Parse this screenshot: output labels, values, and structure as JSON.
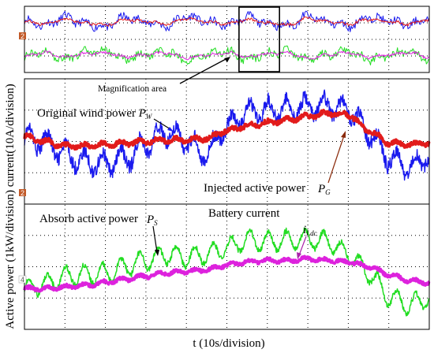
{
  "figure": {
    "ylabel": "Active power (1kW/division) current(10A/division)",
    "xlabel": "t (10s/division)",
    "annotations": {
      "magnification": "Magnification area",
      "wind": "Original wind power",
      "injected": "Injected active power",
      "absorb": "Absorb active power",
      "battery": "Battery  current"
    },
    "symbols": {
      "pw_main": "P",
      "pw_sub": "W",
      "pg_main": "P",
      "pg_sub": "G",
      "ps_main": "P",
      "ps_sub": "S",
      "il_main": "i",
      "il_sub": "Ldc"
    },
    "channel_markers": [
      "2",
      "2",
      "4"
    ]
  },
  "colors": {
    "wind": "#1a1aee",
    "injected": "#e21b1b",
    "absorb": "#22dd22",
    "battery": "#dd22dd",
    "grid": "#000000",
    "marker_bg": "#c25a28"
  },
  "chart_data": [
    {
      "type": "line",
      "panel": "overview",
      "xlim": [
        0,
        10
      ],
      "grid": true,
      "series": [
        {
          "key": "wind",
          "values": [
            2.35,
            2.15,
            2.5,
            2.2,
            2.05,
            2.5,
            2.3,
            2.1,
            2.55,
            2.3,
            2.15,
            2.5,
            2.25,
            2.1,
            2.55,
            2.3,
            2.1,
            2.5,
            2.35,
            2.15,
            2.45
          ]
        },
        {
          "key": "injected",
          "values": [
            2.3,
            2.2,
            2.4,
            2.25,
            2.15,
            2.4,
            2.3,
            2.2,
            2.45,
            2.3,
            2.2,
            2.4,
            2.25,
            2.15,
            2.45,
            2.3,
            2.2,
            2.4,
            2.3,
            2.2,
            2.4
          ]
        },
        {
          "key": "absorb",
          "values": [
            0.7,
            0.95,
            0.6,
            0.9,
            1.0,
            0.6,
            0.8,
            0.95,
            0.55,
            0.8,
            0.95,
            0.6,
            0.85,
            1.0,
            0.55,
            0.8,
            0.95,
            0.6,
            0.75,
            0.95,
            0.65
          ]
        },
        {
          "key": "battery",
          "values": [
            0.75,
            0.9,
            0.7,
            0.85,
            0.9,
            0.7,
            0.8,
            0.9,
            0.65,
            0.8,
            0.9,
            0.7,
            0.85,
            0.9,
            0.65,
            0.8,
            0.9,
            0.7,
            0.8,
            0.9,
            0.7
          ]
        }
      ],
      "highlight_x": [
        5.3,
        6.3
      ]
    },
    {
      "type": "line",
      "panel": "magnified-power",
      "xlim": [
        0,
        10
      ],
      "ylim": [
        0,
        4
      ],
      "grid": true,
      "series": [
        {
          "key": "wind",
          "x": [
            0,
            0.5,
            1,
            1.5,
            2,
            2.5,
            3,
            3.5,
            4,
            4.5,
            5,
            5.5,
            6,
            6.5,
            7,
            7.5,
            8,
            8.5,
            9,
            9.5,
            10
          ],
          "values": [
            2.1,
            2.0,
            1.6,
            1.35,
            1.3,
            1.45,
            1.9,
            2.3,
            2.0,
            1.6,
            2.5,
            2.9,
            3.0,
            3.05,
            3.1,
            3.15,
            3.0,
            2.3,
            1.5,
            1.2,
            1.55
          ]
        },
        {
          "key": "injected",
          "x": [
            0,
            0.5,
            1,
            1.5,
            2,
            2.5,
            3,
            3.5,
            4,
            4.5,
            5,
            5.5,
            6,
            6.5,
            7,
            7.5,
            8,
            8.5,
            9,
            9.5,
            10
          ],
          "values": [
            2.15,
            2.0,
            1.85,
            1.85,
            1.9,
            1.95,
            2.0,
            2.05,
            2.05,
            2.1,
            2.35,
            2.5,
            2.6,
            2.7,
            2.8,
            2.9,
            2.85,
            2.35,
            1.95,
            1.9,
            1.95
          ]
        }
      ]
    },
    {
      "type": "line",
      "panel": "magnified-storage",
      "xlim": [
        0,
        10
      ],
      "ylim": [
        0,
        4
      ],
      "grid": true,
      "series": [
        {
          "key": "absorb",
          "x": [
            0,
            0.5,
            1,
            1.5,
            2,
            2.5,
            3,
            3.5,
            4,
            4.5,
            5,
            5.5,
            6,
            6.5,
            7,
            7.5,
            8,
            8.5,
            9,
            9.5,
            10
          ],
          "values": [
            1.3,
            1.45,
            1.7,
            1.75,
            1.8,
            2.0,
            2.2,
            2.4,
            2.3,
            2.4,
            2.6,
            2.85,
            2.8,
            2.85,
            2.9,
            2.8,
            2.4,
            1.8,
            1.05,
            0.8,
            1.0
          ]
        },
        {
          "key": "battery",
          "x": [
            0,
            0.5,
            1,
            1.5,
            2,
            2.5,
            3,
            3.5,
            4,
            4.5,
            5,
            5.5,
            6,
            6.5,
            7,
            7.5,
            8,
            8.5,
            9,
            9.5,
            10
          ],
          "values": [
            1.3,
            1.3,
            1.35,
            1.4,
            1.5,
            1.6,
            1.7,
            1.8,
            1.85,
            1.9,
            2.05,
            2.15,
            2.2,
            2.2,
            2.25,
            2.2,
            2.15,
            2.0,
            1.75,
            1.55,
            1.5
          ]
        }
      ]
    }
  ]
}
